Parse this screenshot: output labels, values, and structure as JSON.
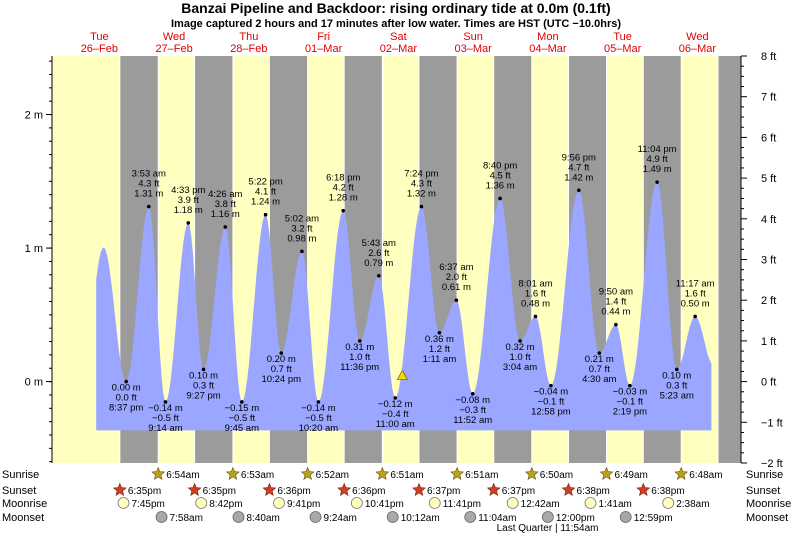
{
  "title": "Banzai Pipeline and Backdoor: rising  ordinary tide at 0.0m (0.1ft)",
  "subtitle": "Image captured 2 hours and 17 minutes after low water. Times are HST (UTC −10.0hrs)",
  "colors": {
    "day": "#ffffc0",
    "night": "#9b9b9b",
    "tide_fill": "#9aa6ff",
    "date_label": "#e00000",
    "sun_star": "#b8a020",
    "sunset_star": "#d04020",
    "moonrise": "#ffffc0",
    "moonset": "#a8a8a8"
  },
  "chart_data": {
    "type": "area",
    "days": [
      {
        "name": "Tue",
        "date": "26–Feb"
      },
      {
        "name": "Wed",
        "date": "27–Feb"
      },
      {
        "name": "Thu",
        "date": "28–Feb"
      },
      {
        "name": "Fri",
        "date": "01–Mar"
      },
      {
        "name": "Sat",
        "date": "02–Mar"
      },
      {
        "name": "Sun",
        "date": "03–Mar"
      },
      {
        "name": "Mon",
        "date": "04–Mar"
      },
      {
        "name": "Tue",
        "date": "05–Mar"
      },
      {
        "name": "Wed",
        "date": "06–Mar"
      }
    ],
    "x_unit": "hours since 26-Feb 00:00 HST",
    "xlim": [
      -3.2,
      218
    ],
    "ylim": [
      -2,
      8
    ],
    "y_unit": "ft",
    "left_axis_m": {
      "ticks": [
        0,
        1,
        2
      ],
      "labels": [
        "0 m",
        "1 m",
        "2 m"
      ]
    },
    "right_axis_ft": {
      "ticks": [
        -2,
        -1,
        0,
        1,
        2,
        3,
        4,
        5,
        6,
        7,
        8
      ],
      "labels": [
        "−2 ft",
        "−1 ft",
        "0 ft",
        "1 ft",
        "2 ft",
        "3 ft",
        "4 ft",
        "5 ft",
        "6 ft",
        "7 ft",
        "8 ft"
      ]
    },
    "nights": [
      {
        "set": 18.58,
        "rise": 30.9
      },
      {
        "set": 42.58,
        "rise": 54.88
      },
      {
        "set": 66.6,
        "rise": 78.87
      },
      {
        "set": 90.6,
        "rise": 102.85
      },
      {
        "set": 114.62,
        "rise": 126.85
      },
      {
        "set": 138.62,
        "rise": 150.83
      },
      {
        "set": 162.63,
        "rise": 174.82
      },
      {
        "set": 186.63,
        "rise": 198.8
      },
      {
        "set": 210.63,
        "rise": 218
      }
    ],
    "tides": [
      {
        "h": 20.62,
        "m": "0.00 m",
        "ft": "0.0 ft",
        "time": "8:37 pm",
        "v": 0.0
      },
      {
        "h": 27.88,
        "m": "1.31 m",
        "ft": "4.3 ft",
        "time": "3:53 am",
        "v": 4.3
      },
      {
        "h": 33.23,
        "m": "−0.14 m",
        "ft": "−0.5 ft",
        "time": "9:14 am",
        "v": -0.5
      },
      {
        "h": 40.55,
        "m": "1.18 m",
        "ft": "3.9 ft",
        "time": "4:33 pm",
        "v": 3.9
      },
      {
        "h": 45.45,
        "m": "0.10 m",
        "ft": "0.3 ft",
        "time": "9:27 pm",
        "v": 0.3
      },
      {
        "h": 52.43,
        "m": "1.16 m",
        "ft": "3.8 ft",
        "time": "4:26 am",
        "v": 3.8
      },
      {
        "h": 57.75,
        "m": "−0.15 m",
        "ft": "−0.5 ft",
        "time": "9:45 am",
        "v": -0.5
      },
      {
        "h": 65.37,
        "m": "1.24 m",
        "ft": "4.1 ft",
        "time": "5:22 pm",
        "v": 4.1
      },
      {
        "h": 70.4,
        "m": "0.20 m",
        "ft": "0.7 ft",
        "time": "10:24 pm",
        "v": 0.7
      },
      {
        "h": 77.03,
        "m": "0.98 m",
        "ft": "3.2 ft",
        "time": "5:02 am",
        "v": 3.2
      },
      {
        "h": 82.33,
        "m": "−0.14 m",
        "ft": "−0.5 ft",
        "time": "10:20 am",
        "v": -0.5
      },
      {
        "h": 90.3,
        "m": "1.28 m",
        "ft": "4.2 ft",
        "time": "6:18 pm",
        "v": 4.2
      },
      {
        "h": 95.6,
        "m": "0.31 m",
        "ft": "1.0 ft",
        "time": "11:36 pm",
        "v": 1.0
      },
      {
        "h": 101.72,
        "m": "0.79 m",
        "ft": "2.6 ft",
        "time": "5:43 am",
        "v": 2.6
      },
      {
        "h": 107.0,
        "m": "−0.12 m",
        "ft": "−0.4 ft",
        "time": "11:00 am",
        "v": -0.4
      },
      {
        "h": 115.4,
        "m": "1.32 m",
        "ft": "4.3 ft",
        "time": "7:24 pm",
        "v": 4.3
      },
      {
        "h": 121.18,
        "m": "0.36 m",
        "ft": "1.2 ft",
        "time": "1:11 am",
        "v": 1.2
      },
      {
        "h": 126.62,
        "m": "0.61 m",
        "ft": "2.0 ft",
        "time": "6:37 am",
        "v": 2.0
      },
      {
        "h": 131.87,
        "m": "−0.08 m",
        "ft": "−0.3 ft",
        "time": "11:52 am",
        "v": -0.3
      },
      {
        "h": 140.67,
        "m": "1.36 m",
        "ft": "4.5 ft",
        "time": "8:40 pm",
        "v": 4.5
      },
      {
        "h": 147.07,
        "m": "0.32 m",
        "ft": "1.0 ft",
        "time": "3:04 am",
        "v": 1.0
      },
      {
        "h": 152.02,
        "m": "0.48 m",
        "ft": "1.6 ft",
        "time": "8:01 am",
        "v": 1.6
      },
      {
        "h": 156.97,
        "m": "−0.04 m",
        "ft": "−0.1 ft",
        "time": "12:58 pm",
        "v": -0.1
      },
      {
        "h": 165.93,
        "m": "1.42 m",
        "ft": "4.7 ft",
        "time": "9:56 pm",
        "v": 4.7
      },
      {
        "h": 172.5,
        "m": "0.21 m",
        "ft": "0.7 ft",
        "time": "4:30 am",
        "v": 0.7
      },
      {
        "h": 177.83,
        "m": "0.44 m",
        "ft": "1.4 ft",
        "time": "9:50 am",
        "v": 1.4
      },
      {
        "h": 182.32,
        "m": "−0.03 m",
        "ft": "−0.1 ft",
        "time": "2:19 pm",
        "v": -0.1
      },
      {
        "h": 191.07,
        "m": "1.49 m",
        "ft": "4.9 ft",
        "time": "11:04 pm",
        "v": 4.9
      },
      {
        "h": 197.38,
        "m": "0.10 m",
        "ft": "0.3 ft",
        "time": "5:23 am",
        "v": 0.3
      },
      {
        "h": 203.28,
        "m": "0.50 m",
        "ft": "1.6 ft",
        "time": "11:17 am",
        "v": 1.6
      }
    ],
    "current": {
      "h": 109.28,
      "v": 0.1
    }
  },
  "rows": {
    "labels": [
      "Sunrise",
      "Sunset",
      "Moonrise",
      "Moonset"
    ],
    "sunrise": [
      {
        "day": 1,
        "time": "6:54am"
      },
      {
        "day": 2,
        "time": "6:53am"
      },
      {
        "day": 3,
        "time": "6:52am"
      },
      {
        "day": 4,
        "time": "6:51am"
      },
      {
        "day": 5,
        "time": "6:51am"
      },
      {
        "day": 6,
        "time": "6:50am"
      },
      {
        "day": 7,
        "time": "6:49am"
      },
      {
        "day": 8,
        "time": "6:48am"
      }
    ],
    "sunset": [
      {
        "day": 0,
        "time": "6:35pm"
      },
      {
        "day": 1,
        "time": "6:35pm"
      },
      {
        "day": 2,
        "time": "6:36pm"
      },
      {
        "day": 3,
        "time": "6:36pm"
      },
      {
        "day": 4,
        "time": "6:37pm"
      },
      {
        "day": 5,
        "time": "6:37pm"
      },
      {
        "day": 6,
        "time": "6:38pm"
      },
      {
        "day": 7,
        "time": "6:38pm"
      }
    ],
    "moonrise": [
      {
        "h": 19.75,
        "time": "7:45pm"
      },
      {
        "h": 44.7,
        "time": "8:42pm"
      },
      {
        "h": 69.68,
        "time": "9:41pm"
      },
      {
        "h": 94.68,
        "time": "10:41pm"
      },
      {
        "h": 119.68,
        "time": "11:41pm"
      },
      {
        "h": 144.7,
        "time": "12:42am"
      },
      {
        "h": 169.68,
        "time": "1:41am"
      },
      {
        "h": 194.63,
        "time": "2:38am"
      }
    ],
    "moonset": [
      {
        "h": 31.97,
        "time": "7:58am"
      },
      {
        "h": 56.67,
        "time": "8:40am"
      },
      {
        "h": 81.4,
        "time": "9:24am"
      },
      {
        "h": 106.2,
        "time": "10:12am"
      },
      {
        "h": 131.07,
        "time": "11:04am"
      },
      {
        "h": 156.0,
        "time": "12:00pm"
      },
      {
        "h": 180.98,
        "time": "12:59pm"
      }
    ],
    "phase": {
      "h": 155.9,
      "text": "Last Quarter | 11:54am"
    }
  }
}
